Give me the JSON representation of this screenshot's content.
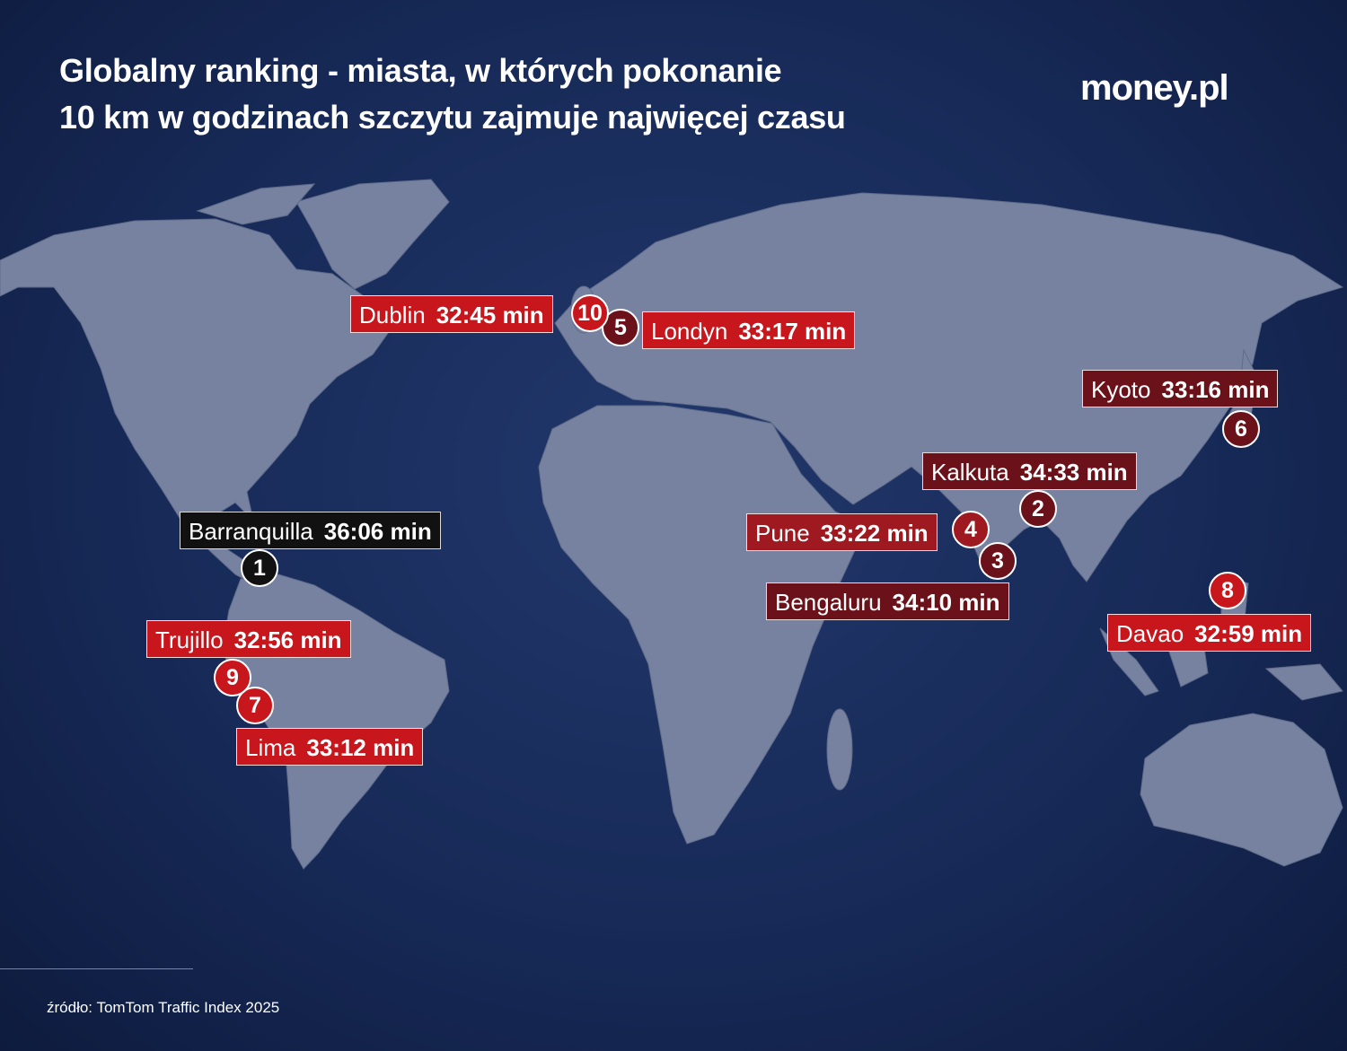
{
  "header": {
    "title_lines": [
      "Globalny ranking - miasta, w których pokonanie",
      "10 km w godzinach szczytu zajmuje najwięcej czasu"
    ],
    "logo": "money.pl"
  },
  "cities": [
    {
      "rank": 1,
      "name": "Barranquilla",
      "time": "36:06 min"
    },
    {
      "rank": 2,
      "name": "Kalkuta",
      "time": "34:33 min"
    },
    {
      "rank": 3,
      "name": "Bengaluru",
      "time": "34:10 min"
    },
    {
      "rank": 4,
      "name": "Pune",
      "time": "33:22 min"
    },
    {
      "rank": 5,
      "name": "Londyn",
      "time": "33:17 min"
    },
    {
      "rank": 6,
      "name": "Kyoto",
      "time": "33:16 min"
    },
    {
      "rank": 7,
      "name": "Lima",
      "time": "33:12 min"
    },
    {
      "rank": 8,
      "name": "Davao",
      "time": "32:59 min"
    },
    {
      "rank": 9,
      "name": "Trujillo",
      "time": "32:56 min"
    },
    {
      "rank": 10,
      "name": "Dublin",
      "time": "32:45 min"
    }
  ],
  "footer": {
    "source": "źródło: TomTom Traffic Index 2025"
  }
}
